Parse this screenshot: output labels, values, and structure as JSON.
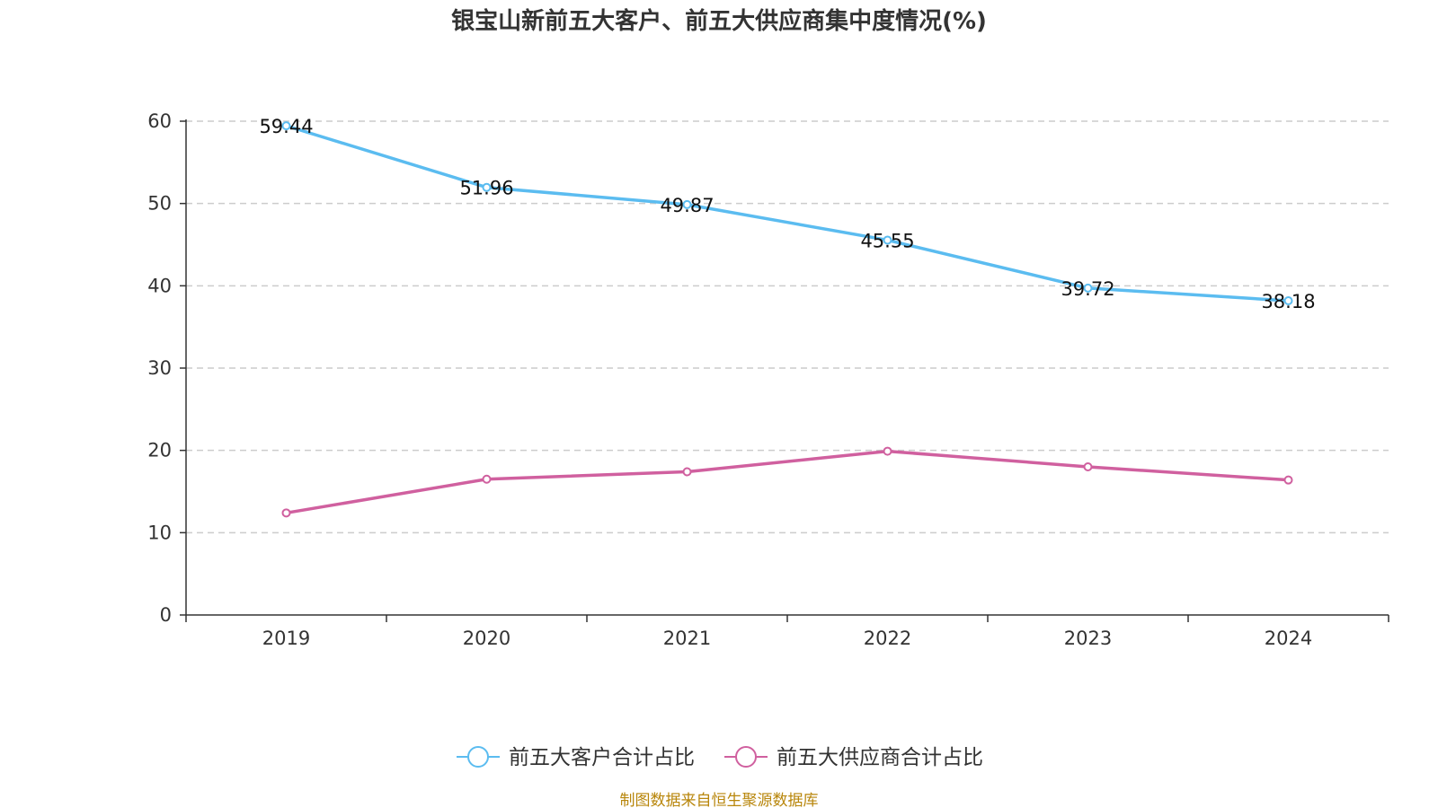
{
  "chart_data": {
    "type": "line",
    "title": "银宝山新前五大客户、前五大供应商集中度情况(%)",
    "categories": [
      "2019",
      "2020",
      "2021",
      "2022",
      "2023",
      "2024"
    ],
    "ylim": [
      0,
      60
    ],
    "yticks": [
      0,
      10,
      20,
      30,
      40,
      50,
      60
    ],
    "grid": true,
    "legend_position": "bottom",
    "series": [
      {
        "name": "前五大客户合计占比",
        "color": "#5bbcf0",
        "values": [
          59.44,
          51.96,
          49.87,
          45.55,
          39.72,
          38.18
        ],
        "show_labels": true
      },
      {
        "name": "前五大供应商合计占比",
        "color": "#d0609f",
        "values": [
          12.4,
          16.5,
          17.4,
          19.9,
          18.0,
          16.4
        ],
        "show_labels": false
      }
    ]
  },
  "source": "制图数据来自恒生聚源数据库"
}
